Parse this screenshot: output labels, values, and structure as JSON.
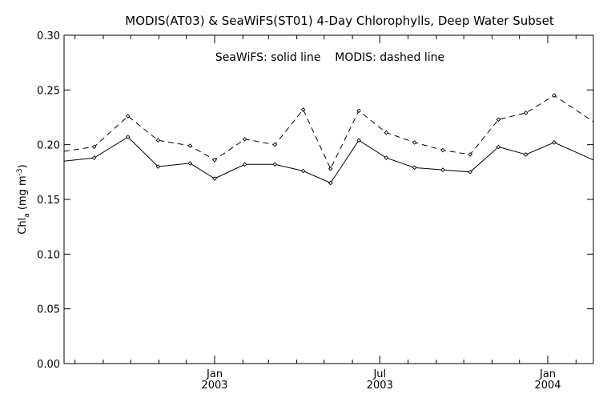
{
  "chart_data": {
    "type": "line",
    "title": "MODIS(AT03) & SeaWiFS(ST01) 4-Day Chlorophylls, Deep Water Subset",
    "annotation": "SeaWiFS: solid line    MODIS: dashed line",
    "ylabel": {
      "main": "Chl",
      "sub": "a",
      "unit_prefix": " (mg m",
      "unit_sup": "-3",
      "unit_suffix": ")"
    },
    "ylim": [
      0.0,
      0.3
    ],
    "yticks": [
      "0.00",
      "0.05",
      "0.10",
      "0.15",
      "0.20",
      "0.25",
      "0.30"
    ],
    "ytick_values": [
      0.0,
      0.05,
      0.1,
      0.15,
      0.2,
      0.25,
      0.3
    ],
    "xlim": [
      "2002-07-20",
      "2004-02-20"
    ],
    "xtick_labels": [
      {
        "date": "2003-01-01",
        "month": "Jan",
        "year": "2003"
      },
      {
        "date": "2003-07-01",
        "month": "Jul",
        "year": "2003"
      },
      {
        "date": "2004-01-01",
        "month": "Jan",
        "year": "2004"
      }
    ],
    "xminor_ticks": [
      "2002-08-01",
      "2002-09-01",
      "2002-10-01",
      "2002-11-01",
      "2002-12-01",
      "2003-02-01",
      "2003-03-01",
      "2003-04-01",
      "2003-05-01",
      "2003-06-01",
      "2003-08-01",
      "2003-09-01",
      "2003-10-01",
      "2003-11-01",
      "2003-12-01",
      "2004-02-01"
    ],
    "x": [
      "2002-07-20",
      "2002-08-22",
      "2002-09-28",
      "2002-10-31",
      "2002-12-05",
      "2003-01-01",
      "2003-02-03",
      "2003-03-08",
      "2003-04-08",
      "2003-05-08",
      "2003-06-08",
      "2003-07-08",
      "2003-08-08",
      "2003-09-08",
      "2003-10-08",
      "2003-11-08",
      "2003-12-08",
      "2004-01-08",
      "2004-02-20"
    ],
    "series": [
      {
        "name": "SeaWiFS",
        "style": "solid",
        "values": [
          0.185,
          0.188,
          0.207,
          0.18,
          0.183,
          0.169,
          0.182,
          0.182,
          0.176,
          0.165,
          0.204,
          0.188,
          0.179,
          0.177,
          0.175,
          0.198,
          0.191,
          0.202,
          0.186
        ]
      },
      {
        "name": "MODIS",
        "style": "dashed",
        "values": [
          0.194,
          0.198,
          0.226,
          0.204,
          0.199,
          0.186,
          0.205,
          0.2,
          0.232,
          0.178,
          0.231,
          0.211,
          0.202,
          0.195,
          0.191,
          0.223,
          0.229,
          0.245,
          0.221
        ]
      }
    ]
  }
}
